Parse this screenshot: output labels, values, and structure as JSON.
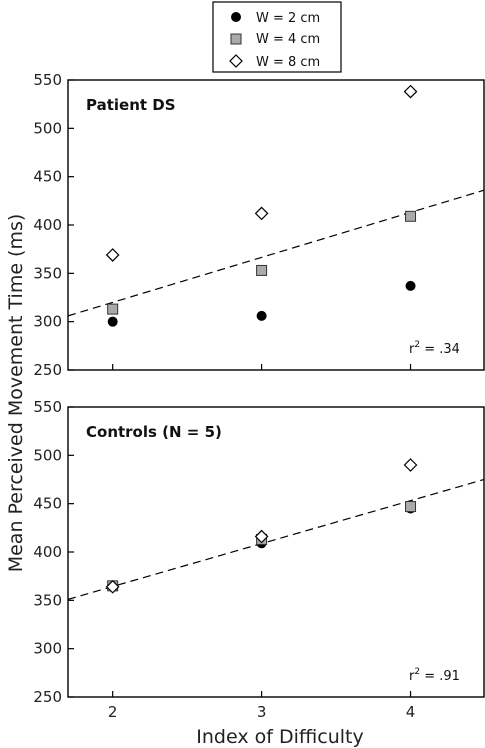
{
  "chart_data": [
    {
      "type": "scatter",
      "title": "Patient DS",
      "xlabel": "Index of Difficulty",
      "ylabel": "Mean Perceived Movement Time (ms)",
      "xlim": [
        1.7,
        4.5
      ],
      "ylim": [
        250,
        550
      ],
      "xticks": [
        "2",
        "3",
        "4"
      ],
      "yticks": [
        "250",
        "300",
        "350",
        "400",
        "450",
        "500",
        "550"
      ],
      "series": [
        {
          "name": "W = 2 cm",
          "marker": "circle",
          "color": "#000000",
          "x": [
            2,
            3,
            4
          ],
          "y": [
            300,
            306,
            337
          ]
        },
        {
          "name": "W = 4 cm",
          "marker": "square",
          "color": "#aaaaaa",
          "x": [
            2,
            3,
            4
          ],
          "y": [
            313,
            353,
            409
          ]
        },
        {
          "name": "W = 8 cm",
          "marker": "diamond",
          "color": "#ffffff",
          "x": [
            2,
            3,
            4
          ],
          "y": [
            369,
            412,
            538
          ]
        }
      ],
      "fit": {
        "x": [
          1.7,
          4.5
        ],
        "y": [
          306,
          436
        ]
      },
      "r2": {
        "label": "r",
        "sup": "2",
        "value": " = .34"
      }
    },
    {
      "type": "scatter",
      "title": "Controls (N = 5)",
      "xlabel": "Index of Difficulty",
      "ylabel": "Mean Perceived Movement Time (ms)",
      "xlim": [
        1.7,
        4.5
      ],
      "ylim": [
        250,
        550
      ],
      "xticks": [
        "2",
        "3",
        "4"
      ],
      "yticks": [
        "250",
        "300",
        "350",
        "400",
        "450",
        "500",
        "550"
      ],
      "series": [
        {
          "name": "W = 2 cm",
          "marker": "circle",
          "color": "#000000",
          "x": [
            2,
            3,
            4
          ],
          "y": [
            365,
            409,
            445
          ]
        },
        {
          "name": "W = 4 cm",
          "marker": "square",
          "color": "#aaaaaa",
          "x": [
            2,
            3,
            4
          ],
          "y": [
            365,
            413,
            447
          ]
        },
        {
          "name": "W = 8 cm",
          "marker": "diamond",
          "color": "#ffffff",
          "x": [
            2,
            3,
            4
          ],
          "y": [
            364,
            416,
            490
          ]
        }
      ],
      "fit": {
        "x": [
          1.7,
          4.5
        ],
        "y": [
          351,
          475
        ]
      },
      "r2": {
        "label": "r",
        "sup": "2",
        "value": " = .91"
      }
    }
  ],
  "legend": {
    "placement": "top-center",
    "items": [
      {
        "label": "W = 2 cm",
        "marker": "circle"
      },
      {
        "label": "W = 4 cm",
        "marker": "square"
      },
      {
        "label": "W = 8 cm",
        "marker": "diamond"
      }
    ]
  },
  "axes": {
    "xlabel": "Index of Difficulty",
    "ylabel": "Mean Perceived Movement Time (ms)"
  }
}
